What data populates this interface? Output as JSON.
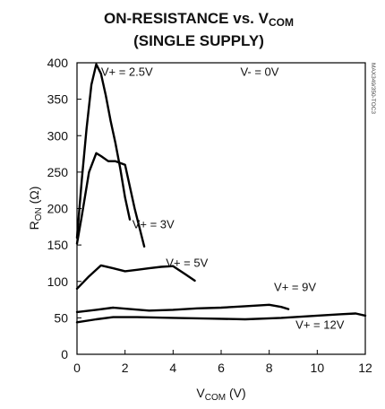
{
  "chart_data": {
    "type": "line",
    "title": {
      "line1_main": "ON-RESISTANCE vs. V",
      "line1_sub": "COM",
      "line2": "(SINGLE SUPPLY)"
    },
    "xlabel": {
      "main": "V",
      "sub": "COM",
      "unit": " (V)"
    },
    "ylabel": {
      "main": "R",
      "sub": "ON",
      "unit": " (Ω)"
    },
    "xlim": [
      0,
      12
    ],
    "ylim": [
      0,
      400
    ],
    "xticks": [
      0,
      2,
      4,
      6,
      8,
      10,
      12
    ],
    "yticks": [
      0,
      50,
      100,
      150,
      200,
      250,
      300,
      350,
      400
    ],
    "grid": false,
    "annotations": [
      {
        "text": "V- = 0V",
        "x": 6.8,
        "y": 382
      },
      {
        "text": "V+ = 2.5V",
        "x": 1.0,
        "y": 382
      },
      {
        "text": "V+ = 3V",
        "x": 2.3,
        "y": 173
      },
      {
        "text": "V+ = 5V",
        "x": 3.7,
        "y": 120
      },
      {
        "text": "V+ = 9V",
        "x": 8.2,
        "y": 87
      },
      {
        "text": "V+ = 12V",
        "x": 9.1,
        "y": 35
      }
    ],
    "side_label": "MAX349/350-TOC3",
    "series": [
      {
        "name": "V+ = 2.5V",
        "x": [
          0.0,
          0.2,
          0.4,
          0.6,
          0.8,
          1.0,
          1.2,
          1.4,
          1.6,
          1.8,
          2.0,
          2.2
        ],
        "y": [
          160,
          240,
          310,
          370,
          398,
          385,
          355,
          320,
          290,
          255,
          215,
          185
        ]
      },
      {
        "name": "V+ = 3V",
        "x": [
          0.0,
          0.2,
          0.5,
          0.8,
          1.0,
          1.3,
          1.6,
          2.0,
          2.4,
          2.8
        ],
        "y": [
          152,
          190,
          250,
          276,
          272,
          265,
          265,
          260,
          200,
          148
        ]
      },
      {
        "name": "V+ = 5V",
        "x": [
          0.0,
          0.5,
          1.0,
          1.5,
          2.0,
          2.5,
          3.0,
          3.5,
          4.0,
          4.5,
          4.9
        ],
        "y": [
          90,
          107,
          122,
          118,
          114,
          116,
          118,
          120,
          121,
          110,
          101
        ]
      },
      {
        "name": "V+ = 9V",
        "x": [
          0.0,
          0.8,
          1.5,
          2.2,
          3.0,
          4.0,
          5.0,
          6.0,
          7.0,
          8.0,
          8.5,
          8.8
        ],
        "y": [
          58,
          61,
          64,
          62,
          60,
          61,
          63,
          64,
          66,
          68,
          65,
          62
        ]
      },
      {
        "name": "V+ = 12V",
        "x": [
          0.0,
          0.8,
          1.5,
          2.5,
          4.0,
          5.5,
          7.0,
          8.5,
          10.0,
          11.0,
          11.6,
          12.0
        ],
        "y": [
          44,
          48,
          51,
          51,
          50,
          49,
          48,
          50,
          53,
          55,
          56,
          53
        ]
      }
    ]
  }
}
